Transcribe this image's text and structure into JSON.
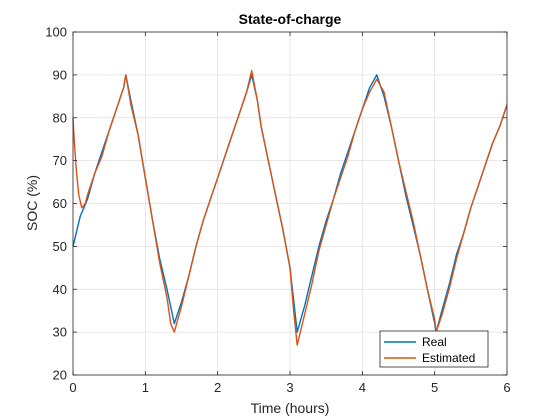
{
  "chart_data": {
    "type": "line",
    "title": "State-of-charge",
    "xlabel": "Time (hours)",
    "ylabel": "SOC (%)",
    "xlim": [
      0,
      6
    ],
    "ylim": [
      20,
      100
    ],
    "xticks": [
      0,
      1,
      2,
      3,
      4,
      5,
      6
    ],
    "yticks": [
      20,
      30,
      40,
      50,
      60,
      70,
      80,
      90,
      100
    ],
    "xtick_labels": [
      "0",
      "1",
      "2",
      "3",
      "4",
      "5",
      "6"
    ],
    "ytick_labels": [
      "20",
      "30",
      "40",
      "50",
      "60",
      "70",
      "80",
      "90",
      "100"
    ],
    "grid": true,
    "legend_position": "bottom-right",
    "series": [
      {
        "name": "Real",
        "color": "#0072BD",
        "x": [
          0,
          0.1,
          0.2,
          0.3,
          0.4,
          0.5,
          0.6,
          0.7,
          0.73,
          0.8,
          0.9,
          1.0,
          1.1,
          1.2,
          1.3,
          1.4,
          1.5,
          1.6,
          1.7,
          1.8,
          1.9,
          2.0,
          2.1,
          2.2,
          2.3,
          2.4,
          2.47,
          2.55,
          2.6,
          2.7,
          2.8,
          2.9,
          3.0,
          3.1,
          3.2,
          3.3,
          3.4,
          3.5,
          3.6,
          3.7,
          3.8,
          3.9,
          4.0,
          4.1,
          4.2,
          4.3,
          4.4,
          4.5,
          4.6,
          4.7,
          4.8,
          4.9,
          5.0,
          5.02,
          5.1,
          5.2,
          5.3,
          5.4,
          5.5,
          5.6,
          5.7,
          5.8,
          5.9,
          6.0
        ],
        "y": [
          50,
          57,
          61,
          67,
          72,
          77,
          82,
          87,
          90,
          84,
          76,
          66,
          56,
          47,
          40,
          32,
          37,
          43,
          50,
          56,
          61,
          66,
          71,
          76,
          81,
          86,
          90,
          84,
          78,
          70,
          62,
          54,
          45,
          30,
          36,
          43,
          50,
          56,
          61,
          67,
          72,
          77,
          82,
          87,
          90,
          85,
          78,
          70,
          62,
          55,
          48,
          40,
          32,
          30,
          35,
          41,
          48,
          53,
          59,
          64,
          69,
          74,
          78,
          83
        ]
      },
      {
        "name": "Estimated",
        "color": "#D95319",
        "x": [
          0,
          0.02,
          0.05,
          0.08,
          0.12,
          0.17,
          0.2,
          0.3,
          0.4,
          0.5,
          0.6,
          0.7,
          0.73,
          0.8,
          0.9,
          1.0,
          1.1,
          1.2,
          1.3,
          1.35,
          1.4,
          1.5,
          1.6,
          1.7,
          1.8,
          1.9,
          2.0,
          2.1,
          2.2,
          2.3,
          2.4,
          2.47,
          2.55,
          2.6,
          2.7,
          2.8,
          2.9,
          3.0,
          3.05,
          3.1,
          3.2,
          3.3,
          3.4,
          3.5,
          3.6,
          3.7,
          3.8,
          3.9,
          4.0,
          4.1,
          4.2,
          4.3,
          4.4,
          4.5,
          4.6,
          4.7,
          4.8,
          4.9,
          5.0,
          5.02,
          5.1,
          5.2,
          5.3,
          5.4,
          5.5,
          5.6,
          5.7,
          5.8,
          5.9,
          6.0
        ],
        "y": [
          80,
          74,
          67,
          62,
          59,
          60,
          62,
          67,
          71,
          77,
          82,
          87,
          90,
          83,
          76,
          66,
          56,
          46,
          38,
          32,
          30,
          36,
          43,
          50,
          56,
          61,
          66,
          71,
          76,
          81,
          86,
          91,
          84,
          78,
          70,
          62,
          54,
          45,
          35,
          27,
          34,
          41,
          49,
          55,
          61,
          66,
          71,
          77,
          82,
          86,
          89,
          86,
          78,
          70,
          63,
          56,
          48,
          40,
          33,
          30,
          34,
          40,
          47,
          53,
          59,
          64,
          69,
          74,
          78,
          83
        ]
      }
    ]
  }
}
